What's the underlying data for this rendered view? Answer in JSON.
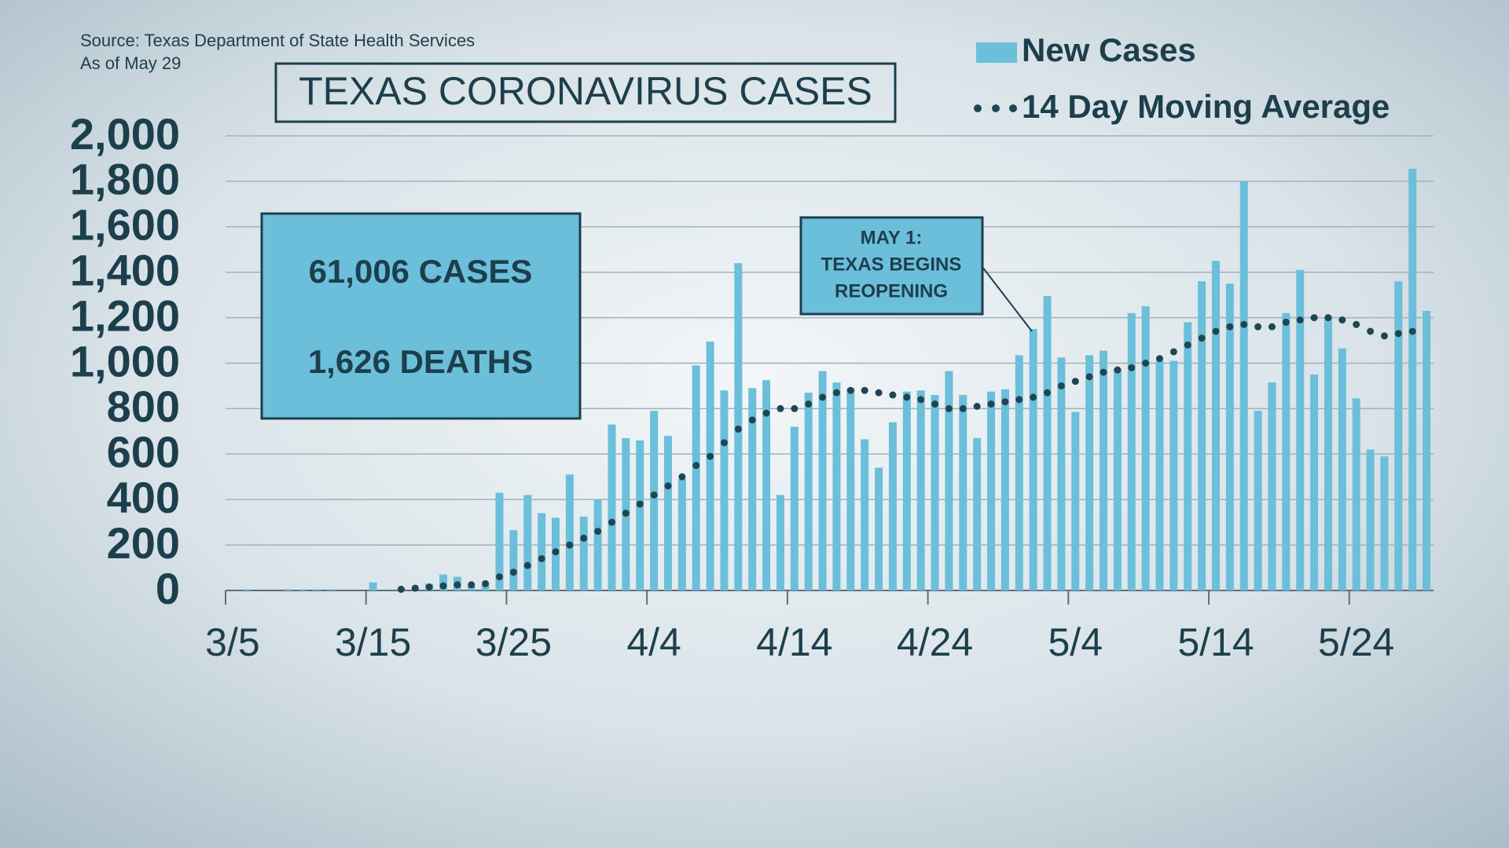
{
  "source": "Source: Texas Department of State Health Services",
  "as_of": "As of May 29",
  "stat_box": [
    "61,006 CASES",
    "1,626 DEATHS"
  ],
  "callout": [
    "MAY 1:",
    "TEXAS BEGINS",
    "REOPENING"
  ],
  "chart_data": {
    "type": "bar",
    "title": "TEXAS CORONAVIRUS CASES",
    "categories": [
      "3/5",
      null,
      null,
      null,
      null,
      null,
      null,
      null,
      null,
      null,
      "3/15",
      null,
      null,
      null,
      null,
      null,
      null,
      null,
      null,
      null,
      "3/25",
      null,
      null,
      null,
      null,
      null,
      null,
      null,
      null,
      null,
      "4/4",
      null,
      null,
      null,
      null,
      null,
      null,
      null,
      null,
      null,
      "4/14",
      null,
      null,
      null,
      null,
      null,
      null,
      null,
      null,
      null,
      "4/24",
      null,
      null,
      null,
      null,
      null,
      null,
      null,
      null,
      null,
      "5/4",
      null,
      null,
      null,
      null,
      null,
      null,
      null,
      null,
      null,
      "5/14",
      null,
      null,
      null,
      null,
      null,
      null,
      null,
      null,
      null,
      "5/24",
      null,
      null,
      null,
      null,
      null
    ],
    "series": [
      {
        "name": "New Cases",
        "color": "#6bbfda",
        "style": "bar",
        "values": [
          0,
          5,
          0,
          0,
          5,
          5,
          5,
          5,
          0,
          0,
          35,
          0,
          10,
          0,
          30,
          70,
          60,
          20,
          25,
          430,
          265,
          420,
          340,
          320,
          510,
          325,
          400,
          730,
          670,
          660,
          790,
          680,
          490,
          990,
          1095,
          880,
          1440,
          890,
          925,
          420,
          720,
          870,
          965,
          915,
          890,
          665,
          540,
          740,
          875,
          880,
          860,
          965,
          860,
          670,
          875,
          885,
          1035,
          1150,
          1295,
          1025,
          785,
          1035,
          1055,
          975,
          1220,
          1250,
          1010,
          1010,
          1180,
          1360,
          1450,
          1350,
          1800,
          790,
          915,
          1220,
          1410,
          950,
          1200,
          1065,
          845,
          620,
          590,
          1360,
          1855,
          1230
        ]
      },
      {
        "name": "14 Day Moving Average",
        "color": "#1f4652",
        "style": "dots",
        "values": [
          null,
          null,
          null,
          null,
          null,
          null,
          null,
          null,
          null,
          null,
          null,
          null,
          5,
          10,
          15,
          20,
          25,
          25,
          30,
          60,
          80,
          110,
          140,
          170,
          200,
          230,
          260,
          300,
          340,
          380,
          420,
          460,
          500,
          550,
          590,
          650,
          710,
          750,
          780,
          800,
          800,
          820,
          850,
          870,
          880,
          880,
          870,
          860,
          850,
          840,
          820,
          800,
          800,
          810,
          820,
          830,
          840,
          850,
          870,
          900,
          920,
          940,
          960,
          970,
          980,
          1000,
          1020,
          1050,
          1080,
          1110,
          1140,
          1160,
          1170,
          1160,
          1160,
          1180,
          1190,
          1200,
          1200,
          1190,
          1170,
          1140,
          1120,
          1130,
          1140,
          null
        ]
      }
    ],
    "ylim": [
      0,
      2000
    ],
    "yticks": [
      0,
      200,
      400,
      600,
      800,
      {
        "value": 1000,
        "label": "1,000"
      },
      {
        "value": 1200,
        "label": "1,200"
      },
      {
        "value": 1400,
        "label": "1,400"
      },
      {
        "value": 1600,
        "label": "1,600"
      },
      {
        "value": 1800,
        "label": "1,800"
      },
      {
        "value": 2000,
        "label": "2,000"
      }
    ],
    "grid": true,
    "legend": "top-right"
  }
}
